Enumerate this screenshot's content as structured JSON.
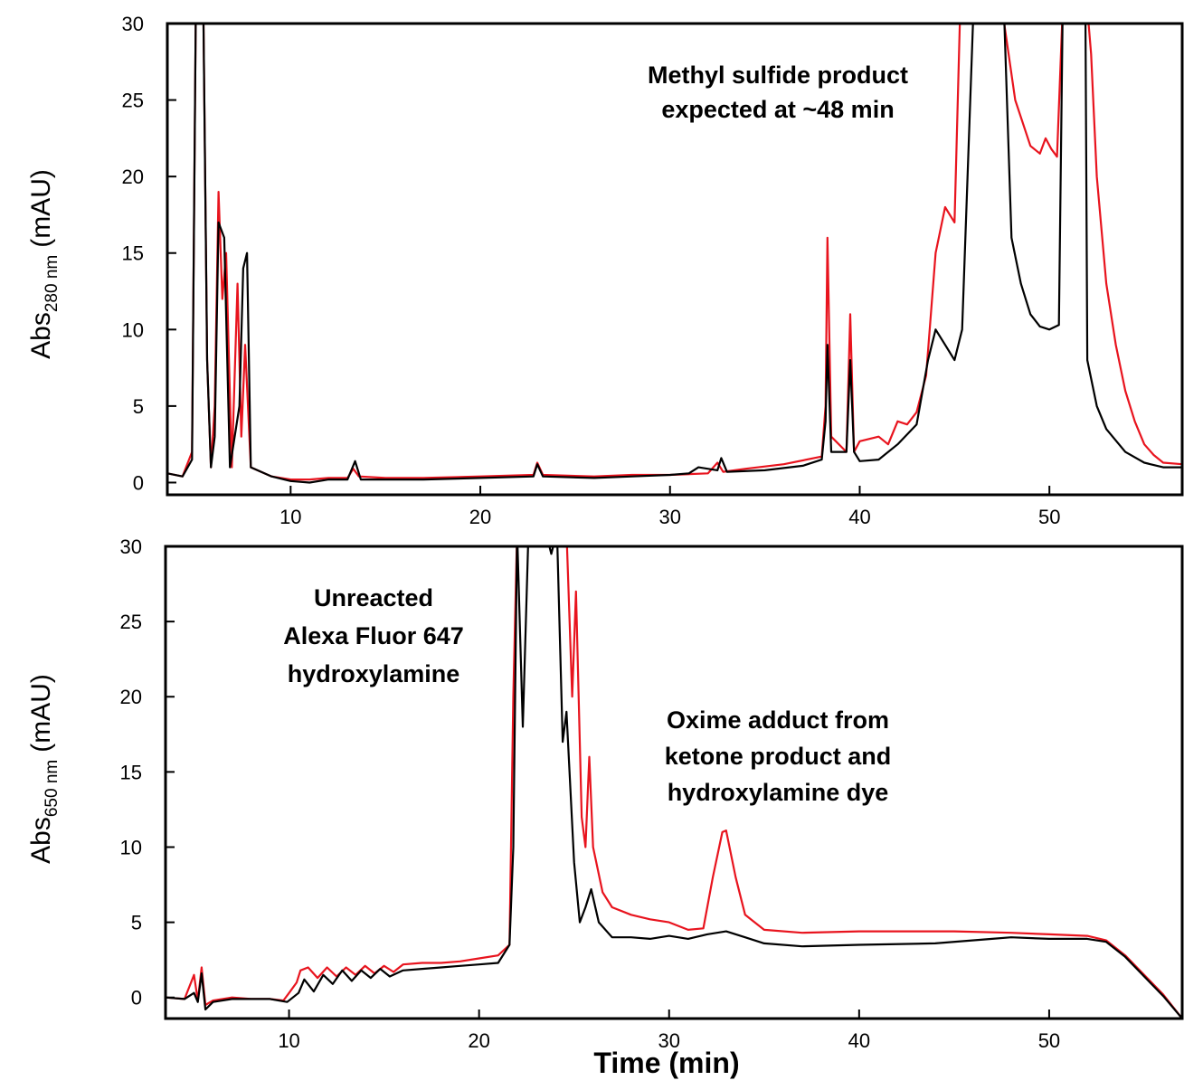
{
  "chart_data": [
    {
      "type": "line",
      "xlim": [
        3.5,
        57
      ],
      "ylim": [
        -0.8,
        30
      ],
      "x_ticks": [
        "10",
        "20",
        "30",
        "40",
        "50"
      ],
      "y_ticks": [
        "0",
        "5",
        "10",
        "15",
        "20",
        "25",
        "30"
      ],
      "ylabel": "Abs",
      "ylabel_subscript": "280 nm",
      "ylabel_unit": "(mAU)",
      "annotation": [
        "Methyl sulfide product",
        "expected at ~48 min"
      ],
      "series": [
        {
          "color": "#e8141e",
          "points": [
            [
              3.5,
              0.6
            ],
            [
              4.3,
              0.4
            ],
            [
              4.8,
              2
            ],
            [
              5.0,
              31
            ],
            [
              5.4,
              31
            ],
            [
              5.6,
              8
            ],
            [
              5.8,
              1
            ],
            [
              6.0,
              5
            ],
            [
              6.2,
              19
            ],
            [
              6.4,
              12
            ],
            [
              6.6,
              15
            ],
            [
              6.9,
              1
            ],
            [
              7.2,
              13
            ],
            [
              7.4,
              3
            ],
            [
              7.6,
              9
            ],
            [
              7.9,
              1
            ],
            [
              9,
              0.4
            ],
            [
              10,
              0.2
            ],
            [
              11,
              0.2
            ],
            [
              12,
              0.3
            ],
            [
              13,
              0.3
            ],
            [
              13.3,
              0.9
            ],
            [
              13.6,
              0.4
            ],
            [
              15,
              0.3
            ],
            [
              17,
              0.3
            ],
            [
              20,
              0.4
            ],
            [
              22.8,
              0.5
            ],
            [
              23.0,
              1.3
            ],
            [
              23.3,
              0.5
            ],
            [
              26,
              0.4
            ],
            [
              28,
              0.5
            ],
            [
              30,
              0.5
            ],
            [
              32,
              0.6
            ],
            [
              32.5,
              1.3
            ],
            [
              32.8,
              0.7
            ],
            [
              34,
              0.9
            ],
            [
              36,
              1.2
            ],
            [
              38,
              1.7
            ],
            [
              38.2,
              5
            ],
            [
              38.3,
              16
            ],
            [
              38.5,
              3
            ],
            [
              39.3,
              2
            ],
            [
              39.5,
              11
            ],
            [
              39.7,
              2
            ],
            [
              40,
              2.7
            ],
            [
              41,
              3
            ],
            [
              41.5,
              2.5
            ],
            [
              42,
              4
            ],
            [
              42.5,
              3.8
            ],
            [
              43,
              4.6
            ],
            [
              43.5,
              7
            ],
            [
              44,
              15
            ],
            [
              44.5,
              18
            ],
            [
              45,
              17
            ],
            [
              45.3,
              31
            ],
            [
              47.5,
              31
            ],
            [
              48.2,
              25
            ],
            [
              49,
              22
            ],
            [
              49.5,
              21.5
            ],
            [
              49.8,
              22.5
            ],
            [
              50.1,
              21.8
            ],
            [
              50.4,
              21.3
            ],
            [
              50.7,
              31
            ],
            [
              52,
              31
            ],
            [
              52.2,
              28
            ],
            [
              52.5,
              20
            ],
            [
              53,
              13
            ],
            [
              53.5,
              9
            ],
            [
              54,
              6
            ],
            [
              54.5,
              4
            ],
            [
              55,
              2.5
            ],
            [
              55.5,
              1.8
            ],
            [
              56,
              1.3
            ],
            [
              57,
              1.2
            ]
          ]
        },
        {
          "color": "#000000",
          "points": [
            [
              3.5,
              0.6
            ],
            [
              4.3,
              0.4
            ],
            [
              4.8,
              1.5
            ],
            [
              5.0,
              31
            ],
            [
              5.4,
              31
            ],
            [
              5.6,
              8
            ],
            [
              5.8,
              1
            ],
            [
              6.0,
              3
            ],
            [
              6.2,
              17
            ],
            [
              6.5,
              16
            ],
            [
              6.8,
              1
            ],
            [
              7.3,
              5
            ],
            [
              7.5,
              14
            ],
            [
              7.7,
              15
            ],
            [
              7.9,
              1
            ],
            [
              9,
              0.4
            ],
            [
              10,
              0.1
            ],
            [
              11,
              0
            ],
            [
              12,
              0.2
            ],
            [
              13,
              0.2
            ],
            [
              13.4,
              1.4
            ],
            [
              13.7,
              0.2
            ],
            [
              15,
              0.2
            ],
            [
              17,
              0.2
            ],
            [
              20,
              0.3
            ],
            [
              22.8,
              0.4
            ],
            [
              23.0,
              1.2
            ],
            [
              23.3,
              0.4
            ],
            [
              26,
              0.3
            ],
            [
              28,
              0.4
            ],
            [
              30,
              0.5
            ],
            [
              31,
              0.6
            ],
            [
              31.5,
              1
            ],
            [
              32.5,
              0.8
            ],
            [
              32.7,
              1.6
            ],
            [
              33,
              0.7
            ],
            [
              35,
              0.8
            ],
            [
              37,
              1.1
            ],
            [
              38,
              1.5
            ],
            [
              38.2,
              4
            ],
            [
              38.3,
              9
            ],
            [
              38.5,
              2
            ],
            [
              39.3,
              2
            ],
            [
              39.5,
              8
            ],
            [
              39.7,
              2
            ],
            [
              40,
              1.4
            ],
            [
              41,
              1.5
            ],
            [
              42,
              2.5
            ],
            [
              43,
              3.8
            ],
            [
              43.6,
              8
            ],
            [
              44,
              10
            ],
            [
              44.5,
              9
            ],
            [
              45,
              8
            ],
            [
              45.4,
              10
            ],
            [
              46,
              31
            ],
            [
              47.6,
              31
            ],
            [
              48,
              16
            ],
            [
              48.5,
              13
            ],
            [
              49,
              11
            ],
            [
              49.5,
              10.2
            ],
            [
              50,
              10
            ],
            [
              50.5,
              10.3
            ],
            [
              50.7,
              31
            ],
            [
              51.9,
              31
            ],
            [
              52,
              8
            ],
            [
              52.5,
              5
            ],
            [
              53,
              3.5
            ],
            [
              54,
              2
            ],
            [
              55,
              1.3
            ],
            [
              56,
              1
            ],
            [
              57,
              1
            ]
          ]
        }
      ]
    },
    {
      "type": "line",
      "xlim": [
        3.5,
        57
      ],
      "ylim": [
        -1.4,
        30
      ],
      "x_ticks": [
        "10",
        "20",
        "30",
        "40",
        "50"
      ],
      "y_ticks": [
        "0",
        "5",
        "10",
        "15",
        "20",
        "25",
        "30"
      ],
      "xlabel": "Time (min)",
      "ylabel": "Abs",
      "ylabel_subscript": "650 nm",
      "ylabel_unit": "(mAU)",
      "annotations": [
        [
          "Unreacted",
          "Alexa Fluor 647",
          "hydroxylamine"
        ],
        [
          "Oxime adduct from",
          "ketone product and",
          "hydroxylamine dye"
        ]
      ],
      "series": [
        {
          "color": "#e8141e",
          "points": [
            [
              3.5,
              0
            ],
            [
              4.5,
              -0.1
            ],
            [
              5.0,
              1.5
            ],
            [
              5.2,
              -0.2
            ],
            [
              5.4,
              2
            ],
            [
              5.6,
              -0.5
            ],
            [
              6,
              -0.2
            ],
            [
              7,
              0
            ],
            [
              8,
              -0.1
            ],
            [
              9,
              -0.1
            ],
            [
              9.7,
              -0.2
            ],
            [
              10,
              0.3
            ],
            [
              10.4,
              1
            ],
            [
              10.6,
              1.8
            ],
            [
              11,
              2
            ],
            [
              11.5,
              1.3
            ],
            [
              12,
              2
            ],
            [
              12.5,
              1.4
            ],
            [
              13,
              2
            ],
            [
              13.5,
              1.5
            ],
            [
              14,
              2.1
            ],
            [
              14.5,
              1.6
            ],
            [
              15,
              2.1
            ],
            [
              15.5,
              1.7
            ],
            [
              16,
              2.2
            ],
            [
              17,
              2.3
            ],
            [
              18,
              2.3
            ],
            [
              19,
              2.4
            ],
            [
              20,
              2.6
            ],
            [
              21,
              2.8
            ],
            [
              21.6,
              3.5
            ],
            [
              21.8,
              20
            ],
            [
              22.0,
              31
            ],
            [
              22.4,
              31
            ],
            [
              24.6,
              31
            ],
            [
              24.9,
              20
            ],
            [
              25.1,
              27
            ],
            [
              25.4,
              12
            ],
            [
              25.6,
              10
            ],
            [
              25.8,
              16
            ],
            [
              26.0,
              10
            ],
            [
              26.5,
              7
            ],
            [
              27,
              6
            ],
            [
              28,
              5.5
            ],
            [
              29,
              5.2
            ],
            [
              30,
              5
            ],
            [
              31,
              4.5
            ],
            [
              31.8,
              4.6
            ],
            [
              32.3,
              8
            ],
            [
              32.8,
              11
            ],
            [
              33.0,
              11.1
            ],
            [
              33.5,
              8
            ],
            [
              34,
              5.5
            ],
            [
              35,
              4.5
            ],
            [
              37,
              4.3
            ],
            [
              40,
              4.4
            ],
            [
              45,
              4.4
            ],
            [
              48,
              4.3
            ],
            [
              50,
              4.2
            ],
            [
              52,
              4.1
            ],
            [
              53,
              3.8
            ],
            [
              54,
              2.8
            ],
            [
              55,
              1.5
            ],
            [
              56,
              0.2
            ],
            [
              57,
              -1.4
            ]
          ]
        },
        {
          "color": "#000000",
          "points": [
            [
              3.5,
              0
            ],
            [
              4.5,
              -0.1
            ],
            [
              5.0,
              0.3
            ],
            [
              5.2,
              -0.3
            ],
            [
              5.4,
              1.6
            ],
            [
              5.6,
              -0.8
            ],
            [
              6,
              -0.3
            ],
            [
              7,
              -0.1
            ],
            [
              8,
              -0.1
            ],
            [
              9,
              -0.1
            ],
            [
              9.9,
              -0.3
            ],
            [
              10.5,
              0.3
            ],
            [
              10.8,
              1.2
            ],
            [
              11.3,
              0.4
            ],
            [
              11.8,
              1.5
            ],
            [
              12.3,
              0.9
            ],
            [
              12.8,
              1.8
            ],
            [
              13.3,
              1.1
            ],
            [
              13.8,
              1.8
            ],
            [
              14.3,
              1.3
            ],
            [
              14.8,
              1.9
            ],
            [
              15.3,
              1.4
            ],
            [
              16,
              1.8
            ],
            [
              17,
              1.9
            ],
            [
              18,
              2
            ],
            [
              19,
              2.1
            ],
            [
              20,
              2.2
            ],
            [
              21,
              2.3
            ],
            [
              21.6,
              3.5
            ],
            [
              21.8,
              10
            ],
            [
              22.0,
              31
            ],
            [
              22.3,
              18
            ],
            [
              22.6,
              31
            ],
            [
              23.5,
              31
            ],
            [
              23.8,
              29.5
            ],
            [
              24.1,
              31
            ],
            [
              24.4,
              17
            ],
            [
              24.6,
              19
            ],
            [
              25,
              9
            ],
            [
              25.3,
              5
            ],
            [
              25.6,
              6
            ],
            [
              25.9,
              7.2
            ],
            [
              26.3,
              5
            ],
            [
              27,
              4
            ],
            [
              28,
              4
            ],
            [
              29,
              3.9
            ],
            [
              30,
              4.1
            ],
            [
              31,
              3.9
            ],
            [
              32,
              4.2
            ],
            [
              33,
              4.4
            ],
            [
              34,
              4
            ],
            [
              35,
              3.6
            ],
            [
              37,
              3.4
            ],
            [
              40,
              3.5
            ],
            [
              44,
              3.6
            ],
            [
              47,
              3.9
            ],
            [
              48,
              4
            ],
            [
              50,
              3.9
            ],
            [
              52,
              3.9
            ],
            [
              53,
              3.7
            ],
            [
              54,
              2.7
            ],
            [
              55,
              1.4
            ],
            [
              56,
              0.1
            ],
            [
              57,
              -1.4
            ]
          ]
        }
      ]
    }
  ]
}
